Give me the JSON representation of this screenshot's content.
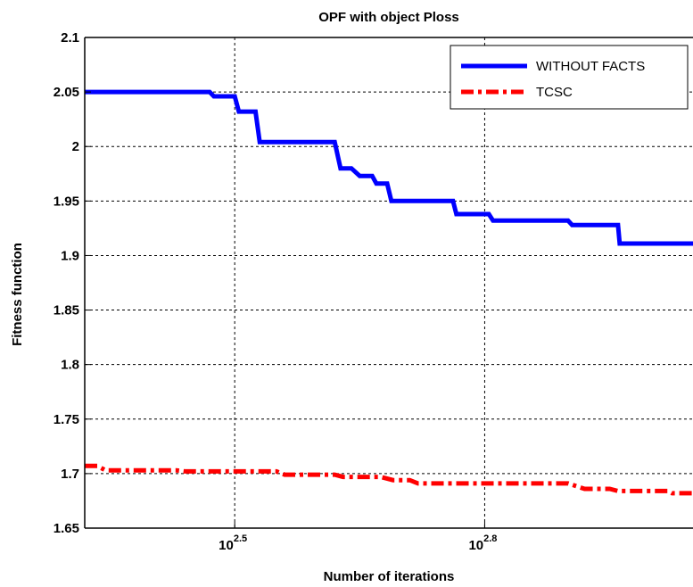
{
  "chart_data": {
    "type": "line",
    "title": "OPF with object Ploss",
    "xlabel": "Number of iterations",
    "ylabel": "Fitness function",
    "x_scale": "log10",
    "xlim_log10": [
      2.32,
      3.05
    ],
    "x_ticks": [
      {
        "base": "10",
        "exp": "2.5",
        "log10": 2.5
      },
      {
        "base": "10",
        "exp": "2.8",
        "log10": 2.8
      }
    ],
    "ylim": [
      1.65,
      2.1
    ],
    "y_ticks": [
      "1.65",
      "1.7",
      "1.75",
      "1.8",
      "1.85",
      "1.9",
      "1.95",
      "2",
      "2.05",
      "2.1"
    ],
    "grid": true,
    "legend_position": "top-right",
    "series": [
      {
        "name": "WITHOUT FACTS",
        "color": "#0000ff",
        "style": "solid",
        "points_log10x": [
          [
            2.32,
            2.05
          ],
          [
            2.47,
            2.05
          ],
          [
            2.475,
            2.046
          ],
          [
            2.5,
            2.046
          ],
          [
            2.505,
            2.032
          ],
          [
            2.525,
            2.032
          ],
          [
            2.53,
            2.004
          ],
          [
            2.62,
            2.004
          ],
          [
            2.627,
            1.98
          ],
          [
            2.64,
            1.98
          ],
          [
            2.65,
            1.973
          ],
          [
            2.665,
            1.973
          ],
          [
            2.67,
            1.966
          ],
          [
            2.683,
            1.966
          ],
          [
            2.688,
            1.95
          ],
          [
            2.762,
            1.95
          ],
          [
            2.766,
            1.938
          ],
          [
            2.805,
            1.938
          ],
          [
            2.81,
            1.932
          ],
          [
            2.9,
            1.932
          ],
          [
            2.905,
            1.928
          ],
          [
            2.96,
            1.928
          ],
          [
            2.962,
            1.911
          ],
          [
            3.05,
            1.911
          ]
        ]
      },
      {
        "name": "TCSC",
        "color": "#ff0000",
        "style": "dash-dot",
        "points_log10x": [
          [
            2.32,
            1.707
          ],
          [
            2.335,
            1.707
          ],
          [
            2.345,
            1.703
          ],
          [
            2.43,
            1.703
          ],
          [
            2.44,
            1.702
          ],
          [
            2.55,
            1.702
          ],
          [
            2.56,
            1.699
          ],
          [
            2.62,
            1.699
          ],
          [
            2.63,
            1.697
          ],
          [
            2.675,
            1.697
          ],
          [
            2.69,
            1.694
          ],
          [
            2.71,
            1.694
          ],
          [
            2.72,
            1.691
          ],
          [
            2.9,
            1.691
          ],
          [
            2.92,
            1.686
          ],
          [
            2.95,
            1.686
          ],
          [
            2.96,
            1.684
          ],
          [
            3.02,
            1.684
          ],
          [
            3.025,
            1.682
          ],
          [
            3.05,
            1.682
          ]
        ]
      }
    ]
  }
}
